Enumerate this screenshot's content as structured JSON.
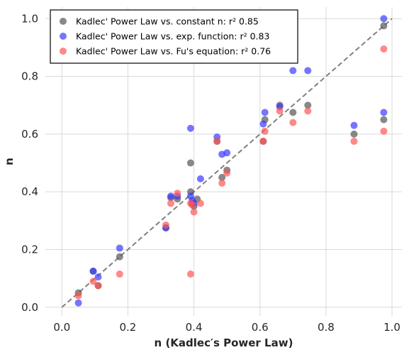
{
  "chart_data": {
    "type": "scatter",
    "xlabel": "n (Kadlec′s Power Law)",
    "ylabel": "n",
    "xlim": [
      -0.05,
      1.03
    ],
    "ylim": [
      -0.03,
      1.04
    ],
    "xticks": [
      "0.0",
      "0.2",
      "0.4",
      "0.6",
      "0.8",
      "1.0"
    ],
    "yticks": [
      "0.0",
      "0.2",
      "0.4",
      "0.6",
      "0.8",
      "1.0"
    ],
    "grid": true,
    "legend_position": "top-left",
    "reference_line": {
      "style": "dashed",
      "color": "#808080",
      "from": [
        0.0,
        0.0
      ],
      "to": [
        1.0,
        1.0
      ]
    },
    "series": [
      {
        "name": "Kadlec' Power Law vs. constant n: r² 0.85",
        "color": "#555555",
        "points": [
          [
            0.05,
            0.05
          ],
          [
            0.095,
            0.125
          ],
          [
            0.11,
            0.075
          ],
          [
            0.175,
            0.175
          ],
          [
            0.315,
            0.275
          ],
          [
            0.33,
            0.38
          ],
          [
            0.35,
            0.375
          ],
          [
            0.39,
            0.5
          ],
          [
            0.39,
            0.4
          ],
          [
            0.395,
            0.36
          ],
          [
            0.4,
            0.35
          ],
          [
            0.41,
            0.375
          ],
          [
            0.47,
            0.575
          ],
          [
            0.485,
            0.45
          ],
          [
            0.5,
            0.475
          ],
          [
            0.61,
            0.575
          ],
          [
            0.615,
            0.65
          ],
          [
            0.66,
            0.7
          ],
          [
            0.7,
            0.675
          ],
          [
            0.745,
            0.7
          ],
          [
            0.885,
            0.6
          ],
          [
            0.975,
            0.975
          ],
          [
            0.975,
            0.65
          ]
        ]
      },
      {
        "name": "Kadlec' Power Law vs. exp. function: r² 0.83",
        "color": "#3a3aff",
        "points": [
          [
            0.05,
            0.015
          ],
          [
            0.095,
            0.125
          ],
          [
            0.11,
            0.105
          ],
          [
            0.175,
            0.205
          ],
          [
            0.315,
            0.275
          ],
          [
            0.33,
            0.385
          ],
          [
            0.35,
            0.385
          ],
          [
            0.39,
            0.62
          ],
          [
            0.39,
            0.385
          ],
          [
            0.395,
            0.37
          ],
          [
            0.4,
            0.36
          ],
          [
            0.42,
            0.445
          ],
          [
            0.47,
            0.59
          ],
          [
            0.485,
            0.53
          ],
          [
            0.5,
            0.535
          ],
          [
            0.61,
            0.635
          ],
          [
            0.615,
            0.675
          ],
          [
            0.66,
            0.695
          ],
          [
            0.7,
            0.82
          ],
          [
            0.745,
            0.82
          ],
          [
            0.885,
            0.63
          ],
          [
            0.975,
            1.0
          ],
          [
            0.975,
            0.675
          ]
        ]
      },
      {
        "name": "Kadlec' Power Law vs. Fu's equation: r² 0.76",
        "color": "#ff5555",
        "points": [
          [
            0.05,
            0.04
          ],
          [
            0.095,
            0.09
          ],
          [
            0.11,
            0.075
          ],
          [
            0.175,
            0.115
          ],
          [
            0.315,
            0.285
          ],
          [
            0.33,
            0.36
          ],
          [
            0.35,
            0.395
          ],
          [
            0.39,
            0.115
          ],
          [
            0.39,
            0.36
          ],
          [
            0.395,
            0.355
          ],
          [
            0.4,
            0.33
          ],
          [
            0.42,
            0.36
          ],
          [
            0.47,
            0.575
          ],
          [
            0.485,
            0.43
          ],
          [
            0.5,
            0.465
          ],
          [
            0.61,
            0.575
          ],
          [
            0.615,
            0.61
          ],
          [
            0.66,
            0.68
          ],
          [
            0.7,
            0.64
          ],
          [
            0.745,
            0.68
          ],
          [
            0.885,
            0.575
          ],
          [
            0.975,
            0.895
          ],
          [
            0.975,
            0.61
          ]
        ]
      }
    ]
  }
}
